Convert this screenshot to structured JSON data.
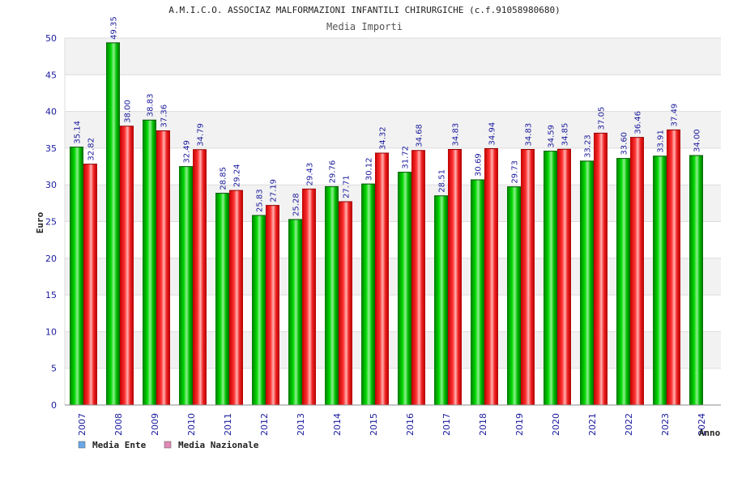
{
  "chart_data": {
    "type": "bar",
    "title": "A.M.I.C.O. ASSOCIAZ MALFORMAZIONI INFANTILI CHIRURGICHE (c.f.91058980680)",
    "subtitle": "Media Importi",
    "ylabel": "Euro",
    "xlabel": "Anno",
    "ylim": [
      0,
      50
    ],
    "yticks": [
      "0",
      "5",
      "10",
      "15",
      "20",
      "25",
      "30",
      "35",
      "40",
      "45",
      "50"
    ],
    "categories": [
      "2007",
      "2008",
      "2009",
      "2010",
      "2011",
      "2012",
      "2013",
      "2014",
      "2015",
      "2016",
      "2017",
      "2018",
      "2019",
      "2020",
      "2021",
      "2022",
      "2023",
      "2024"
    ],
    "series": [
      {
        "name": "Media Ente",
        "color": "#00b000",
        "legend_color": "#6aa8e8",
        "values": [
          35.14,
          49.35,
          38.83,
          32.49,
          28.85,
          25.83,
          25.28,
          29.76,
          30.12,
          31.72,
          28.51,
          30.69,
          29.73,
          34.59,
          33.23,
          33.6,
          33.91,
          34.0
        ],
        "labels": [
          "35.14",
          "49.35",
          "38.83",
          "32.49",
          "28.85",
          "25.83",
          "25.28",
          "29.76",
          "30.12",
          "31.72",
          "28.51",
          "30.69",
          "29.73",
          "34.59",
          "33.23",
          "33.60",
          "33.91",
          "34.00"
        ]
      },
      {
        "name": "Media Nazionale",
        "color": "#e81818",
        "legend_color": "#e089b4",
        "values": [
          32.82,
          38.0,
          37.36,
          34.79,
          29.24,
          27.19,
          29.43,
          27.71,
          34.32,
          34.68,
          34.83,
          34.94,
          34.83,
          34.85,
          37.05,
          36.46,
          37.49,
          null
        ],
        "labels": [
          "32.82",
          "38.00",
          "37.36",
          "34.79",
          "29.24",
          "27.19",
          "29.43",
          "27.71",
          "34.32",
          "34.68",
          "34.83",
          "34.94",
          "34.83",
          "34.85",
          "37.05",
          "36.46",
          "37.49",
          null
        ]
      }
    ],
    "grid": true,
    "legend_position": "bottom-left"
  }
}
